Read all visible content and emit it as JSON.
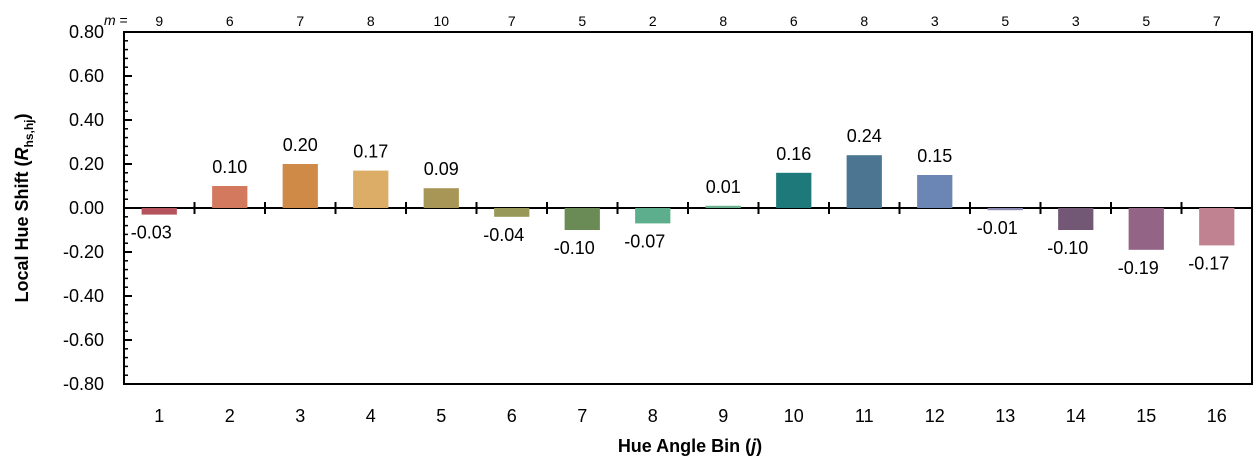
{
  "chart_data": {
    "type": "bar",
    "xlabel": {
      "main": "Hue Angle Bin (",
      "var": "j",
      "tail": ")"
    },
    "ylabel": {
      "main": "Local Hue Shift (",
      "var": "R",
      "sub": "hs,hj",
      "tail": ")"
    },
    "ylim": [
      -0.8,
      0.8
    ],
    "yticks": [
      "0.80",
      "0.60",
      "0.40",
      "0.20",
      "0.00",
      "-0.20",
      "-0.40",
      "-0.60",
      "-0.80"
    ],
    "ytick_values": [
      0.8,
      0.6,
      0.4,
      0.2,
      0.0,
      -0.2,
      -0.4,
      -0.6,
      -0.8
    ],
    "m_prefix": "m",
    "m_suffix": " =",
    "categories": [
      "1",
      "2",
      "3",
      "4",
      "5",
      "6",
      "7",
      "8",
      "9",
      "10",
      "11",
      "12",
      "13",
      "14",
      "15",
      "16"
    ],
    "values": [
      -0.03,
      0.1,
      0.2,
      0.17,
      0.09,
      -0.04,
      -0.1,
      -0.07,
      0.01,
      0.16,
      0.24,
      0.15,
      -0.01,
      -0.1,
      -0.19,
      -0.17
    ],
    "value_labels": [
      "-0.03",
      "0.10",
      "0.20",
      "0.17",
      "0.09",
      "-0.04",
      "-0.10",
      "-0.07",
      "0.01",
      "0.16",
      "0.24",
      "0.15",
      "-0.01",
      "-0.10",
      "-0.19",
      "-0.17"
    ],
    "m_values": [
      "9",
      "6",
      "7",
      "8",
      "10",
      "7",
      "5",
      "2",
      "8",
      "6",
      "8",
      "3",
      "5",
      "3",
      "5",
      "7"
    ],
    "colors": [
      "#b5545c",
      "#d37a5e",
      "#cf8a48",
      "#dbad66",
      "#a89656",
      "#989959",
      "#6a8a56",
      "#5dae8c",
      "#68b08e",
      "#1e7a7a",
      "#4b7591",
      "#6b85b4",
      "#8b8ab1",
      "#735876",
      "#936486",
      "#c08290"
    ],
    "grid": false
  }
}
